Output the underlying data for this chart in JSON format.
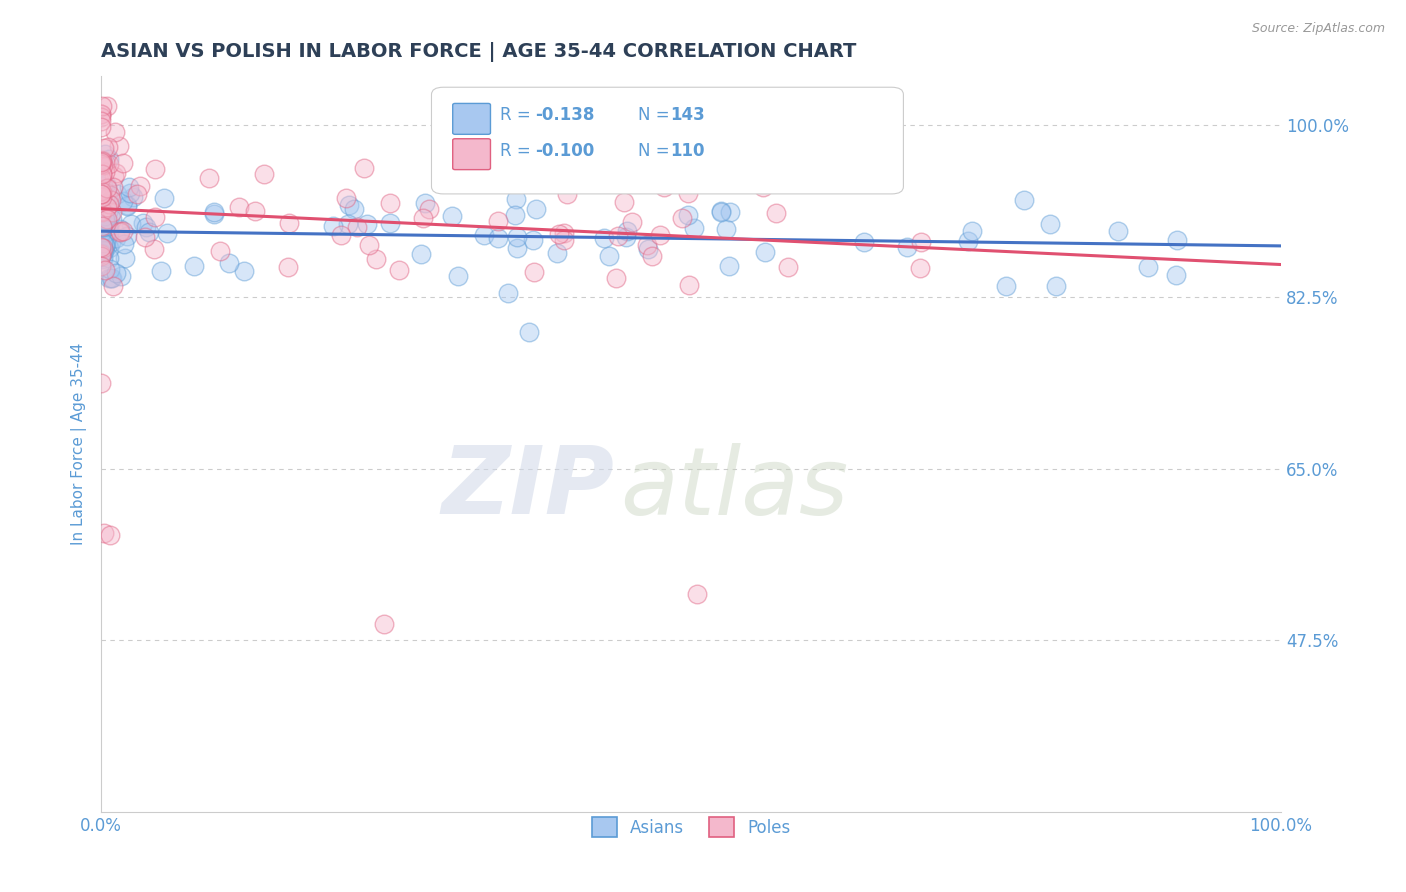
{
  "title": "ASIAN VS POLISH IN LABOR FORCE | AGE 35-44 CORRELATION CHART",
  "source_text": "Source: ZipAtlas.com",
  "ylabel": "In Labor Force | Age 35-44",
  "xlim": [
    0.0,
    1.0
  ],
  "ylim": [
    0.3,
    1.05
  ],
  "yticks": [
    0.475,
    0.65,
    0.825,
    1.0
  ],
  "ytick_labels": [
    "47.5%",
    "65.0%",
    "82.5%",
    "100.0%"
  ],
  "xtick_labels": [
    "0.0%",
    "100.0%"
  ],
  "xticks": [
    0.0,
    1.0
  ],
  "title_color": "#2e4057",
  "axis_color": "#5b9bd5",
  "grid_color": "#cccccc",
  "legend_R_asian": "-0.138",
  "legend_N_asian": "143",
  "legend_R_poles": "-0.100",
  "legend_N_poles": "110",
  "asian_fill": "#a8c8f0",
  "asian_edge": "#5b9bd5",
  "poles_fill": "#f4b8cc",
  "poles_edge": "#e06080",
  "asian_line_color": "#4472c4",
  "poles_line_color": "#e05070",
  "watermark_zip": "ZIP",
  "watermark_atlas": "atlas",
  "background_color": "#ffffff",
  "seed": 42,
  "asian_trend_y0": 0.892,
  "asian_trend_y1": 0.877,
  "poles_trend_y0": 0.915,
  "poles_trend_y1": 0.858
}
